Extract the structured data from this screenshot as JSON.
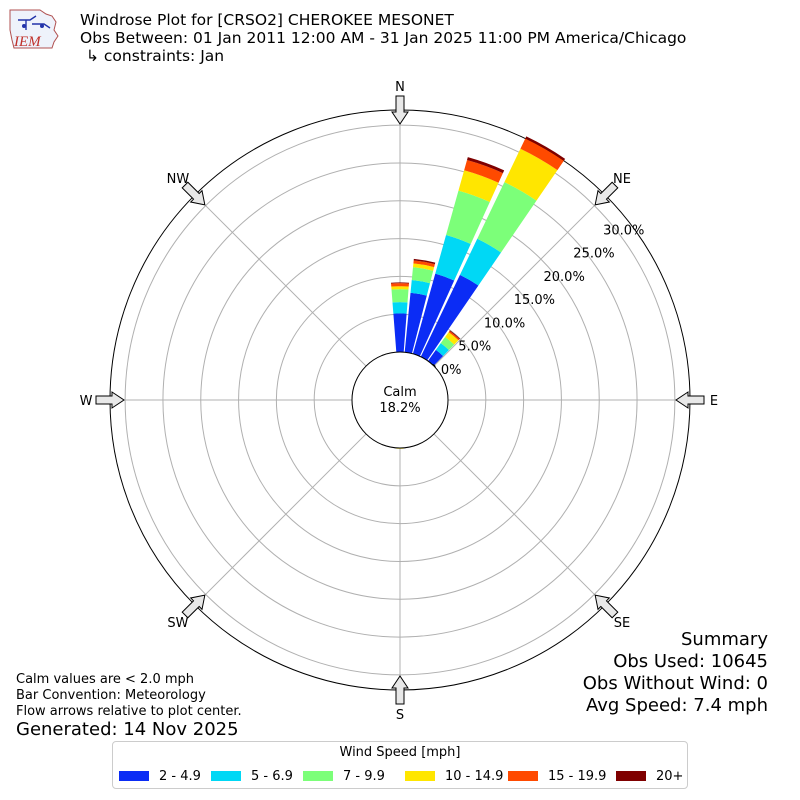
{
  "header": {
    "logo_text": "IEM",
    "title": "Windrose Plot for [CRSO2] CHEROKEE MESONET",
    "obs_between": "Obs Between: 01 Jan 2011 12:00 AM - 31 Jan 2025 11:00 PM America/Chicago",
    "constraints": "↳ constraints: Jan"
  },
  "chart_data": {
    "type": "windrose",
    "directions": [
      "N",
      "NE",
      "E",
      "SE",
      "S",
      "SW",
      "W",
      "NW"
    ],
    "radial_ticks": [
      "0.0%",
      "5.0%",
      "10.0%",
      "15.0%",
      "20.0%",
      "25.0%",
      "30.0%"
    ],
    "radial_max": 32,
    "calm": {
      "label": "Calm",
      "value": "18.2%"
    },
    "speed_bins": [
      "2 - 4.9",
      "5 - 6.9",
      "7 - 9.9",
      "10 - 14.9",
      "15 - 19.9",
      "20+"
    ],
    "colors": [
      "#0b2cf5",
      "#00d8f5",
      "#7cff79",
      "#ffe600",
      "#ff4a00",
      "#7f0000"
    ],
    "bars": [
      {
        "direction_deg": 0,
        "values": [
          5.1,
          1.5,
          1.7,
          0.4,
          0.4,
          0.1
        ]
      },
      {
        "direction_deg": 10,
        "values": [
          7.9,
          1.7,
          1.7,
          0.5,
          0.4,
          0.2
        ]
      },
      {
        "direction_deg": 20,
        "values": [
          11.0,
          5.3,
          6.1,
          2.8,
          1.4,
          0.4
        ]
      },
      {
        "direction_deg": 30,
        "values": [
          12.0,
          5.3,
          8.3,
          4.9,
          1.5,
          0.3
        ]
      },
      {
        "direction_deg": 40,
        "values": [
          1.8,
          1.1,
          1.0,
          0.8,
          0.2,
          0.1
        ]
      },
      {
        "direction_deg": 180,
        "values": [
          0.0,
          0.0,
          0.0,
          0.1,
          0.0,
          0.0
        ]
      }
    ],
    "legend_title": "Wind Speed [mph]",
    "legend_position": "bottom-center"
  },
  "notes": {
    "calm_note": "Calm values are < 2.0 mph",
    "bar_convention": "Bar Convention: Meteorology",
    "flow_arrows": "Flow arrows relative to plot center.",
    "generated": "Generated: 14 Nov 2025"
  },
  "summary": {
    "title": "Summary",
    "obs_used": "Obs Used: 10645",
    "obs_without_wind": "Obs Without Wind: 0",
    "avg_speed": "Avg Speed: 7.4 mph"
  }
}
